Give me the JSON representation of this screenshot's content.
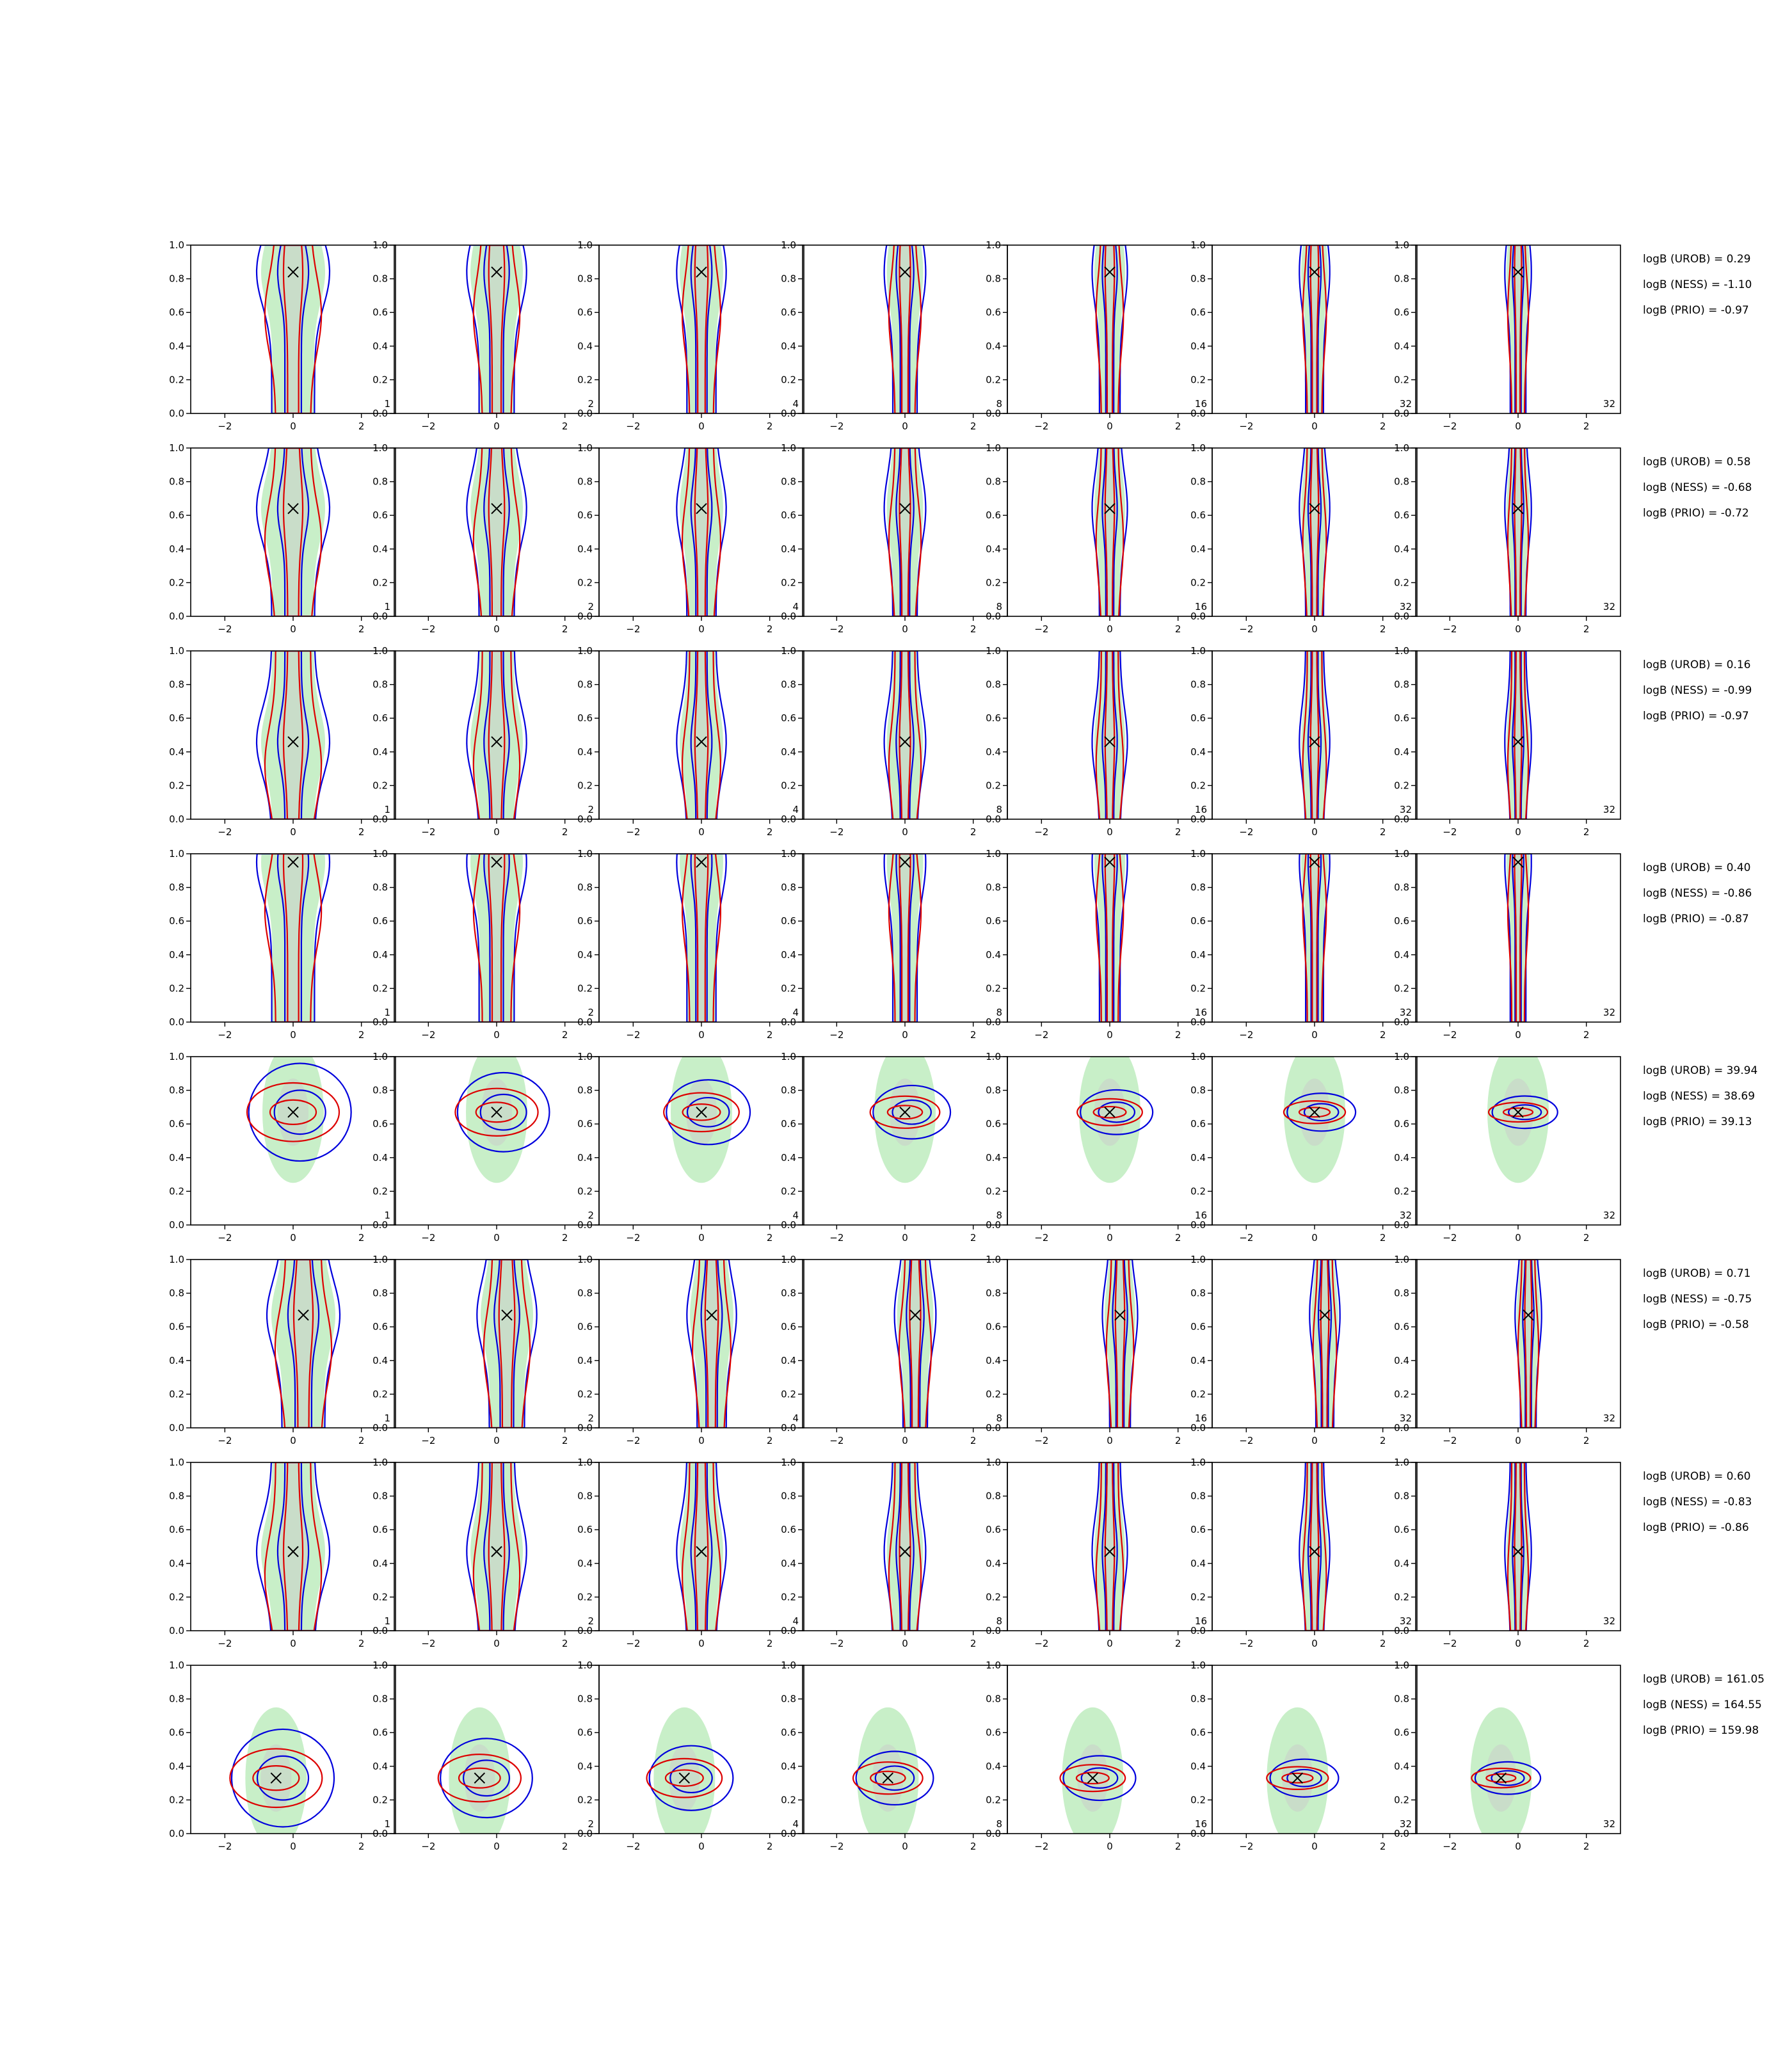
{
  "chart_data": {
    "type": "contour-grid",
    "grid": {
      "rows": 8,
      "cols": 7
    },
    "xlim": [
      -3,
      3
    ],
    "ylim": [
      0,
      1
    ],
    "xticks": [
      -2,
      0,
      2
    ],
    "yticks": [
      0.0,
      0.2,
      0.4,
      0.6,
      0.8,
      1.0
    ],
    "xtick_labels": [
      "−2",
      "0",
      "2"
    ],
    "ytick_labels": [
      "0.0",
      "0.2",
      "0.4",
      "0.6",
      "0.8",
      "1.0"
    ],
    "panel_labels": [
      "1",
      "2",
      "4",
      "8",
      "16",
      "32",
      "32"
    ],
    "colors": {
      "fill": "#c8efc8",
      "fill_inner": "#c9cbc9",
      "blue": "#0000dd",
      "red": "#dd0000",
      "marker": "#000000"
    },
    "rows": [
      {
        "truth": [
          0.0,
          0.84
        ],
        "kind": "vertical",
        "logB": [
          "logB (UROB) = 0.29",
          "logB (NESS) = -1.10",
          "logB (PRIO) = -0.97"
        ]
      },
      {
        "truth": [
          0.0,
          0.64
        ],
        "kind": "vertical",
        "logB": [
          "logB (UROB) = 0.58",
          "logB (NESS) = -0.68",
          "logB (PRIO) = -0.72"
        ]
      },
      {
        "truth": [
          0.0,
          0.46
        ],
        "kind": "vertical",
        "logB": [
          "logB (UROB) = 0.16",
          "logB (NESS) = -0.99",
          "logB (PRIO) = -0.97"
        ]
      },
      {
        "truth": [
          0.0,
          0.95
        ],
        "kind": "vertical",
        "logB": [
          "logB (UROB) = 0.40",
          "logB (NESS) = -0.86",
          "logB (PRIO) = -0.87"
        ]
      },
      {
        "truth": [
          0.0,
          0.67
        ],
        "kind": "horizontal",
        "logB": [
          "logB (UROB) = 39.94",
          "logB (NESS) = 38.69",
          "logB (PRIO) = 39.13"
        ]
      },
      {
        "truth": [
          0.3,
          0.67
        ],
        "kind": "vertical",
        "logB": [
          "logB (UROB) = 0.71",
          "logB (NESS) = -0.75",
          "logB (PRIO) = -0.58"
        ]
      },
      {
        "truth": [
          0.0,
          0.47
        ],
        "kind": "vertical",
        "logB": [
          "logB (UROB) = 0.60",
          "logB (NESS) = -0.83",
          "logB (PRIO) = -0.86"
        ]
      },
      {
        "truth": [
          -0.5,
          0.33
        ],
        "kind": "horizontal",
        "logB": [
          "logB (UROB) = 161.05",
          "logB (NESS) = 164.55",
          "logB (PRIO) = 159.98"
        ]
      }
    ]
  }
}
